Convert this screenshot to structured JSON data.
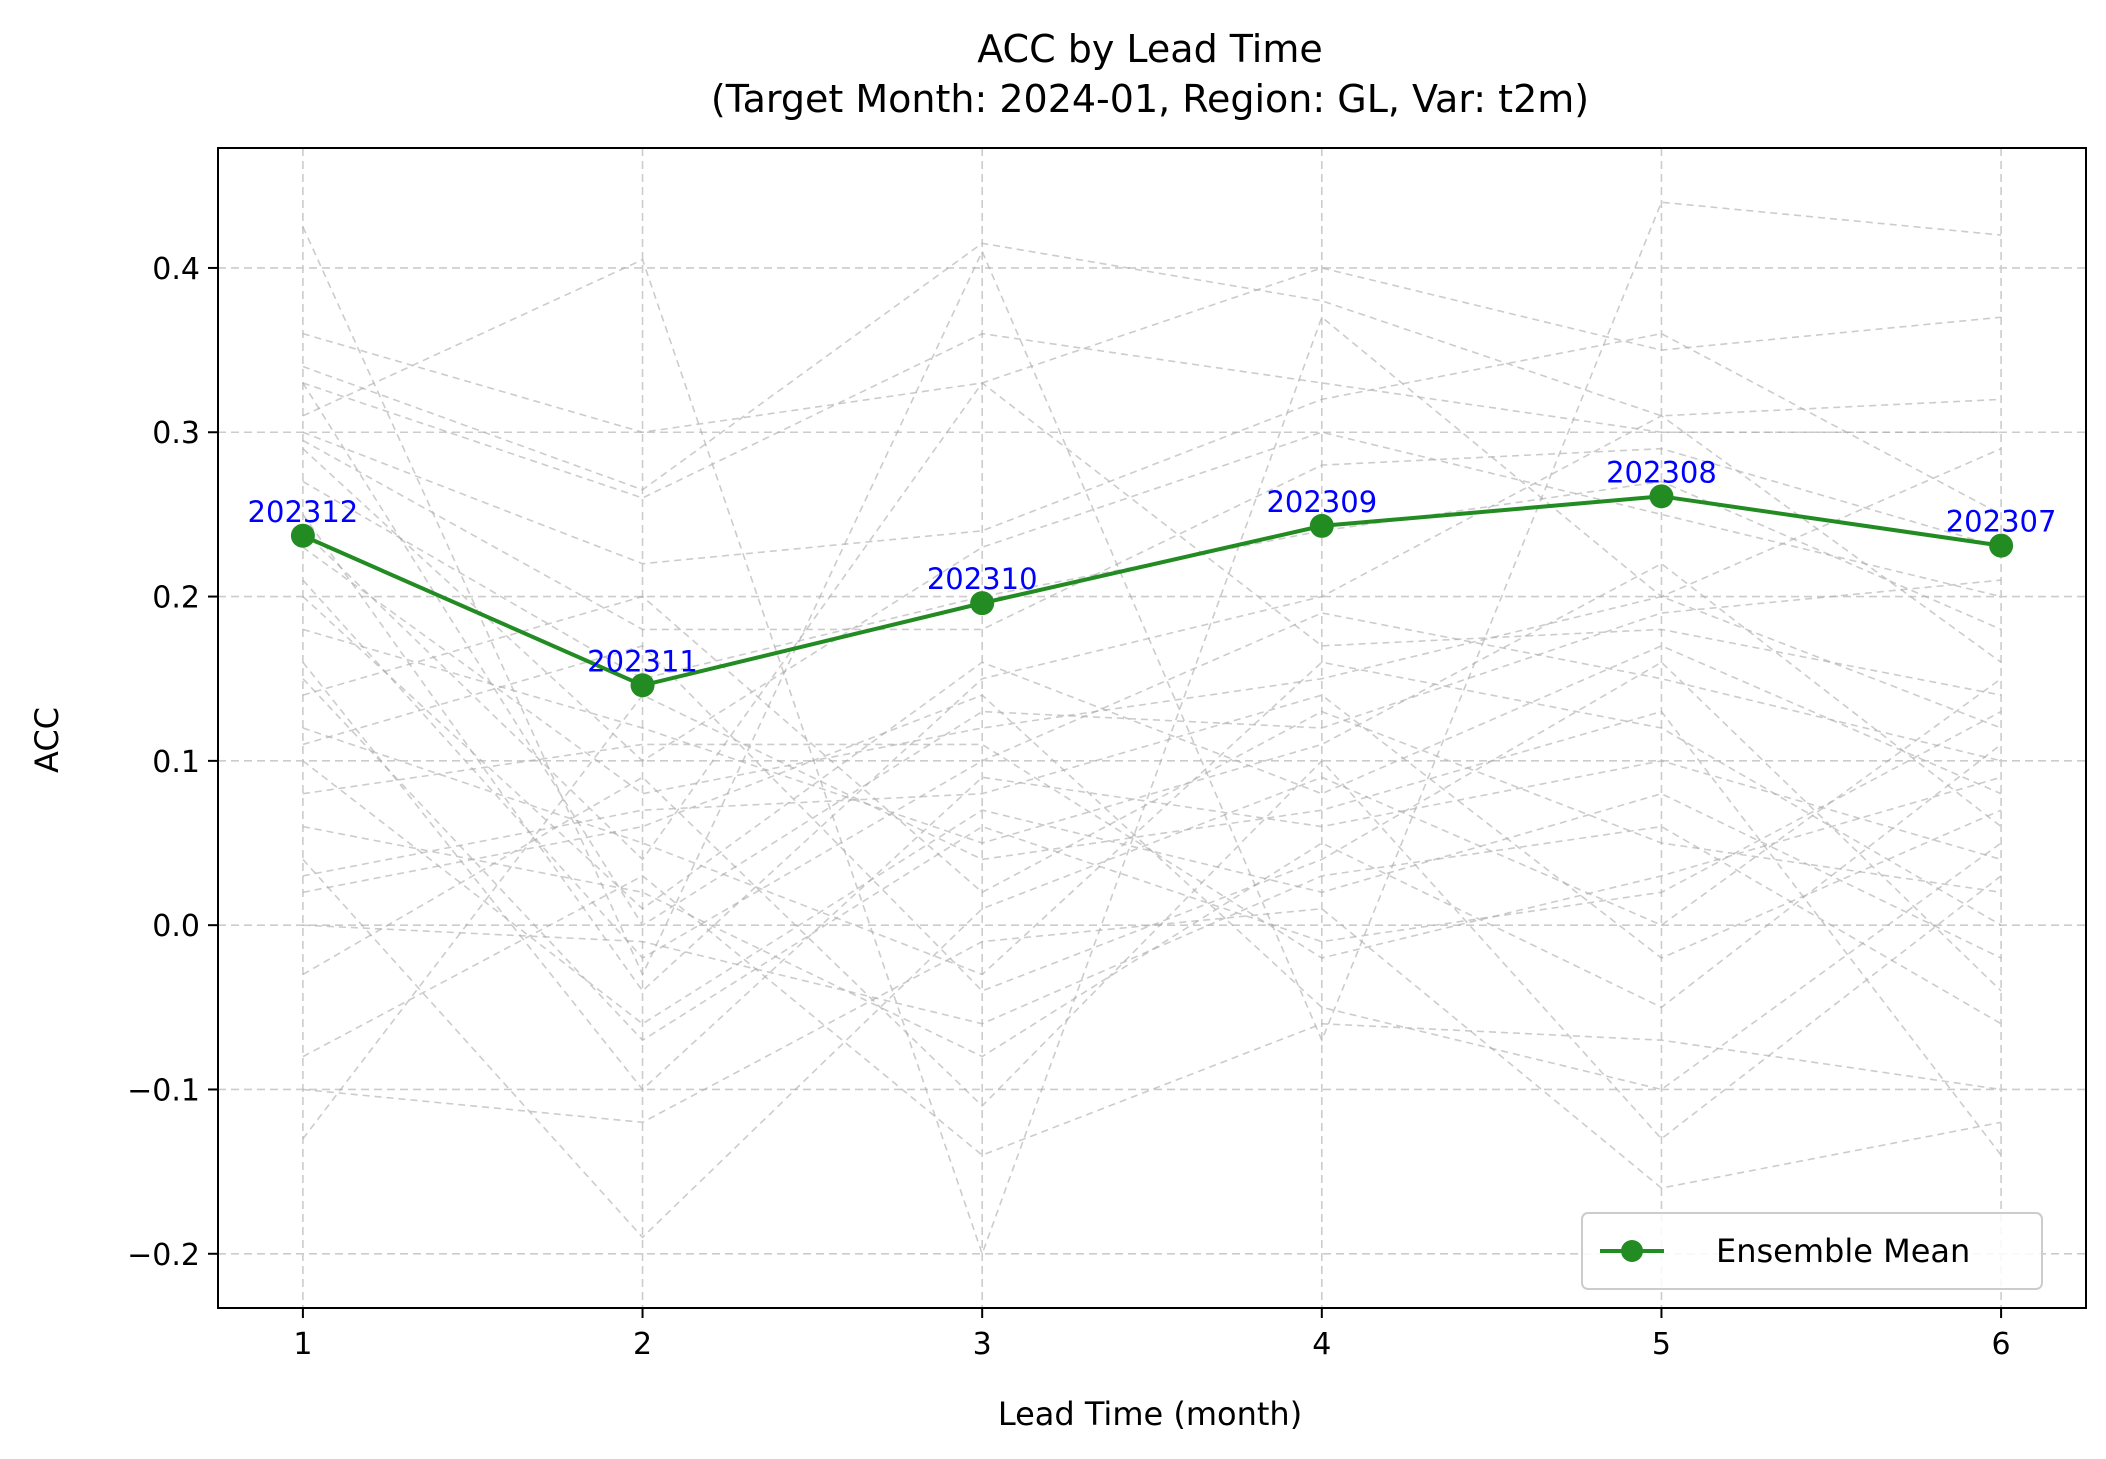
{
  "chart_data": {
    "type": "line",
    "title": "ACC by Lead Time",
    "subtitle": "(Target Month: 2024-01, Region: GL, Var: t2m)",
    "xlabel": "Lead Time (month)",
    "ylabel": "ACC",
    "x": [
      1,
      2,
      3,
      4,
      5,
      6
    ],
    "xlim": [
      0.75,
      6.25
    ],
    "ylim": [
      -0.233,
      0.473
    ],
    "yticks": [
      -0.2,
      -0.1,
      0.0,
      0.1,
      0.2,
      0.3,
      0.4
    ],
    "ytick_labels": [
      "−0.2",
      "−0.1",
      "0.0",
      "0.1",
      "0.2",
      "0.3",
      "0.4"
    ],
    "xtick_labels": [
      "1",
      "2",
      "3",
      "4",
      "5",
      "6"
    ],
    "grid": true,
    "legend_position": "lower-right",
    "series": [
      {
        "name": "Ensemble Mean",
        "color": "#228b22",
        "marker": "circle",
        "values": [
          0.237,
          0.146,
          0.196,
          0.243,
          0.261,
          0.231
        ],
        "point_labels": [
          "202312",
          "202311",
          "202310",
          "202309",
          "202308",
          "202307"
        ]
      }
    ],
    "background_members": {
      "color": "#aaaaaa",
      "style": "dashed",
      "values": [
        [
          0.425,
          -0.03,
          0.41,
          -0.07,
          0.44,
          0.42
        ],
        [
          0.36,
          0.3,
          0.33,
          0.4,
          0.35,
          0.37
        ],
        [
          0.34,
          0.265,
          0.415,
          0.38,
          0.31,
          0.32
        ],
        [
          0.33,
          0.26,
          0.36,
          0.33,
          0.3,
          0.3
        ],
        [
          0.31,
          0.405,
          -0.2,
          0.37,
          0.2,
          0.29
        ],
        [
          0.3,
          0.22,
          0.24,
          0.32,
          0.36,
          0.25
        ],
        [
          0.295,
          0.18,
          0.18,
          0.28,
          0.29,
          0.23
        ],
        [
          0.29,
          0.1,
          0.23,
          0.3,
          0.25,
          0.2
        ],
        [
          0.27,
          0.15,
          0.2,
          0.24,
          0.27,
          0.18
        ],
        [
          0.25,
          -0.04,
          0.15,
          0.2,
          0.31,
          0.16
        ],
        [
          0.24,
          0.04,
          0.33,
          0.17,
          0.18,
          0.14
        ],
        [
          0.23,
          0.08,
          0.12,
          0.15,
          0.2,
          0.12
        ],
        [
          0.21,
          -0.02,
          0.1,
          0.19,
          0.15,
          0.1
        ],
        [
          0.2,
          0.01,
          0.16,
          0.08,
          0.17,
          0.08
        ],
        [
          0.18,
          0.12,
          0.05,
          0.11,
          0.22,
          0.06
        ],
        [
          0.16,
          -0.1,
          0.09,
          0.06,
          0.1,
          0.04
        ],
        [
          0.14,
          0.2,
          0.02,
          0.13,
          0.05,
          0.02
        ],
        [
          0.12,
          0.05,
          -0.03,
          0.16,
          0.12,
          0.0
        ],
        [
          0.1,
          -0.06,
          0.07,
          0.02,
          0.08,
          -0.02
        ],
        [
          0.08,
          0.11,
          0.11,
          -0.02,
          0.03,
          0.09
        ],
        [
          0.06,
          0.02,
          -0.08,
          0.05,
          -0.05,
          0.11
        ],
        [
          0.04,
          -0.19,
          0.01,
          0.09,
          0.0,
          0.15
        ],
        [
          0.02,
          0.06,
          0.14,
          -0.05,
          -0.1,
          0.05
        ],
        [
          0.0,
          -0.01,
          -0.06,
          0.03,
          0.06,
          -0.06
        ],
        [
          -0.03,
          0.09,
          -0.11,
          0.1,
          -0.13,
          0.03
        ],
        [
          -0.08,
          0.03,
          -0.14,
          -0.06,
          -0.07,
          -0.1
        ],
        [
          -0.1,
          -0.12,
          -0.01,
          0.01,
          -0.16,
          -0.12
        ],
        [
          -0.13,
          0.14,
          0.04,
          0.07,
          0.13,
          -0.14
        ],
        [
          0.15,
          -0.07,
          0.06,
          -0.01,
          0.02,
          0.13
        ],
        [
          0.33,
          0.0,
          0.13,
          0.12,
          0.19,
          0.21
        ],
        [
          0.11,
          0.17,
          -0.04,
          0.04,
          0.16,
          -0.04
        ],
        [
          0.03,
          0.07,
          0.08,
          0.14,
          -0.02,
          0.07
        ]
      ]
    }
  }
}
